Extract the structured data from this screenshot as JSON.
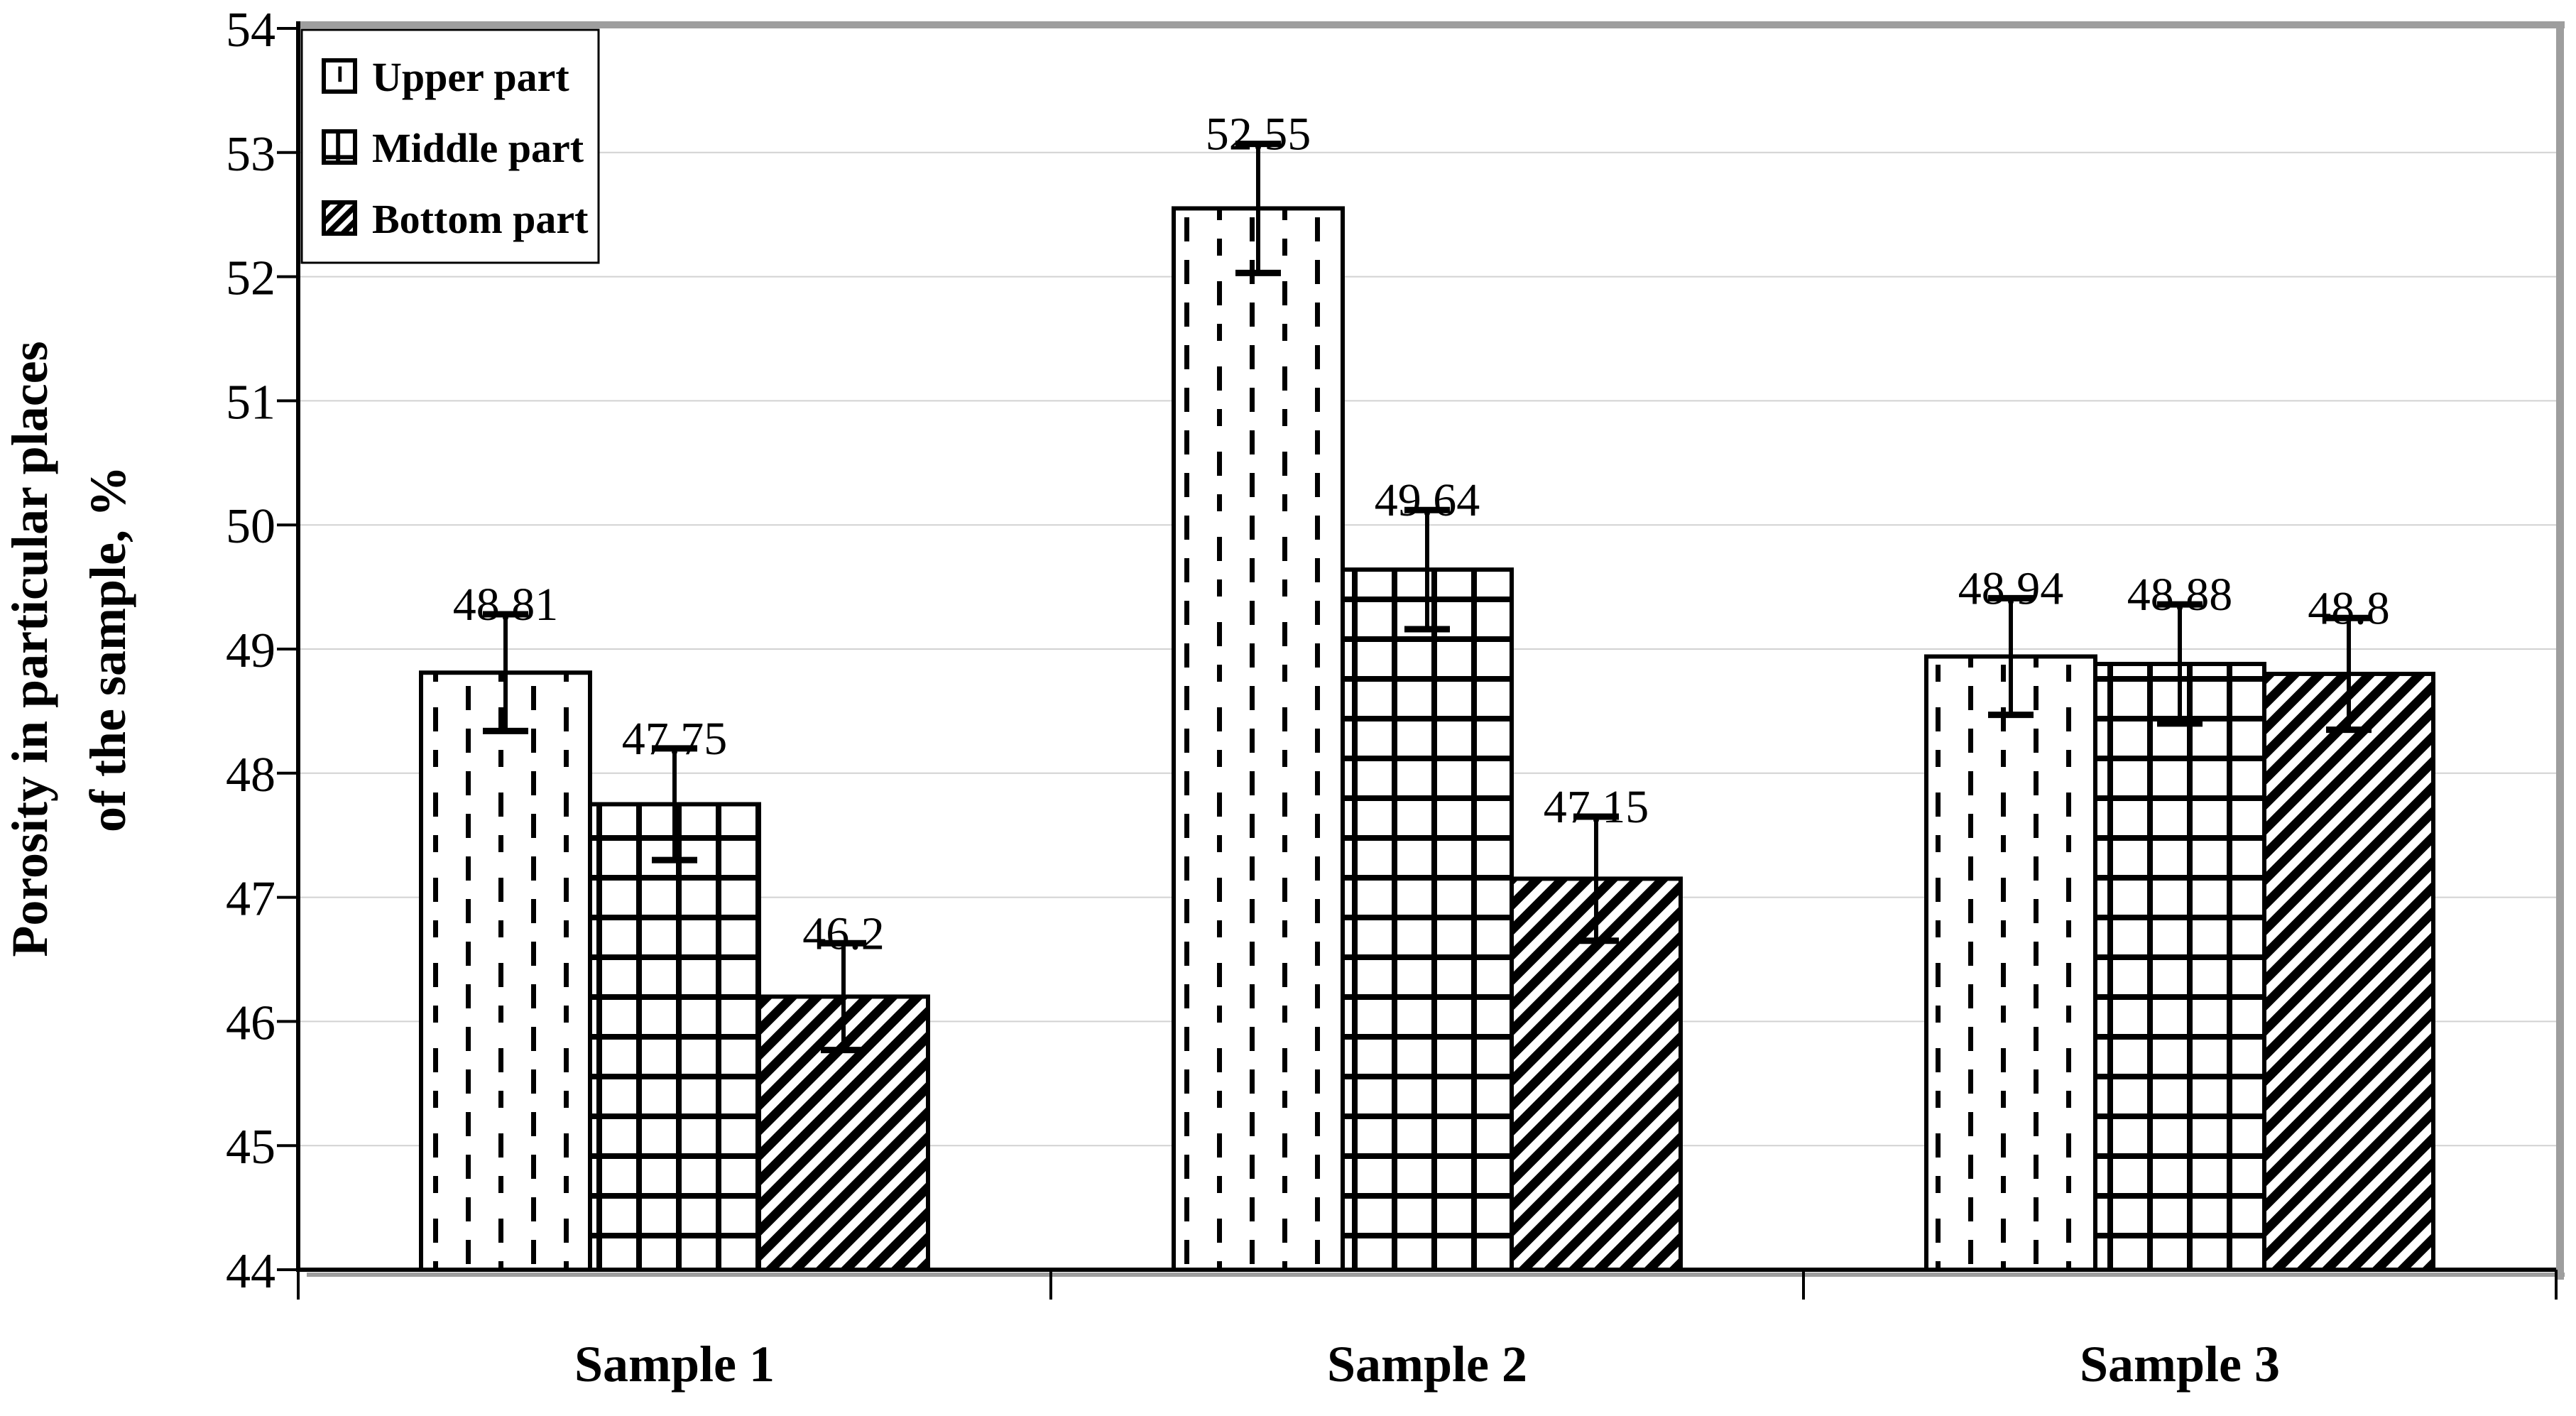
{
  "chart_data": {
    "type": "bar",
    "title": "",
    "ylabel_line1": "Porosity in particular places",
    "ylabel_line2": "of the sample, %",
    "categories": [
      "Sample 1",
      "Sample 2",
      "Sample 3"
    ],
    "series": [
      {
        "name": "Upper part",
        "pattern": "dashed-vertical",
        "values": [
          48.81,
          52.55,
          48.94
        ],
        "errors": [
          0.47,
          0.52,
          0.47
        ]
      },
      {
        "name": "Middle part",
        "pattern": "grid",
        "values": [
          47.75,
          49.64,
          48.88
        ],
        "errors": [
          0.45,
          0.48,
          0.48
        ]
      },
      {
        "name": "Bottom part",
        "pattern": "diagonal",
        "values": [
          46.2,
          47.15,
          48.8
        ],
        "errors": [
          0.43,
          0.5,
          0.45
        ]
      }
    ],
    "data_labels": [
      [
        "48.81",
        "52.55",
        "48.94"
      ],
      [
        "47.75",
        "49.64",
        "48.88"
      ],
      [
        "46.2",
        "47.15",
        "48.8"
      ]
    ],
    "ylim": [
      44,
      54
    ],
    "ytick_values": [
      44,
      45,
      46,
      47,
      48,
      49,
      50,
      51,
      52,
      53,
      54
    ],
    "grid": true,
    "legend_position": "top-left",
    "colors": {
      "ink": "#000000",
      "bar_fill": "#ffffff",
      "gridline": "#d2d2d2",
      "border_shadow": "#9e9e9e",
      "background": "#ffffff"
    }
  }
}
